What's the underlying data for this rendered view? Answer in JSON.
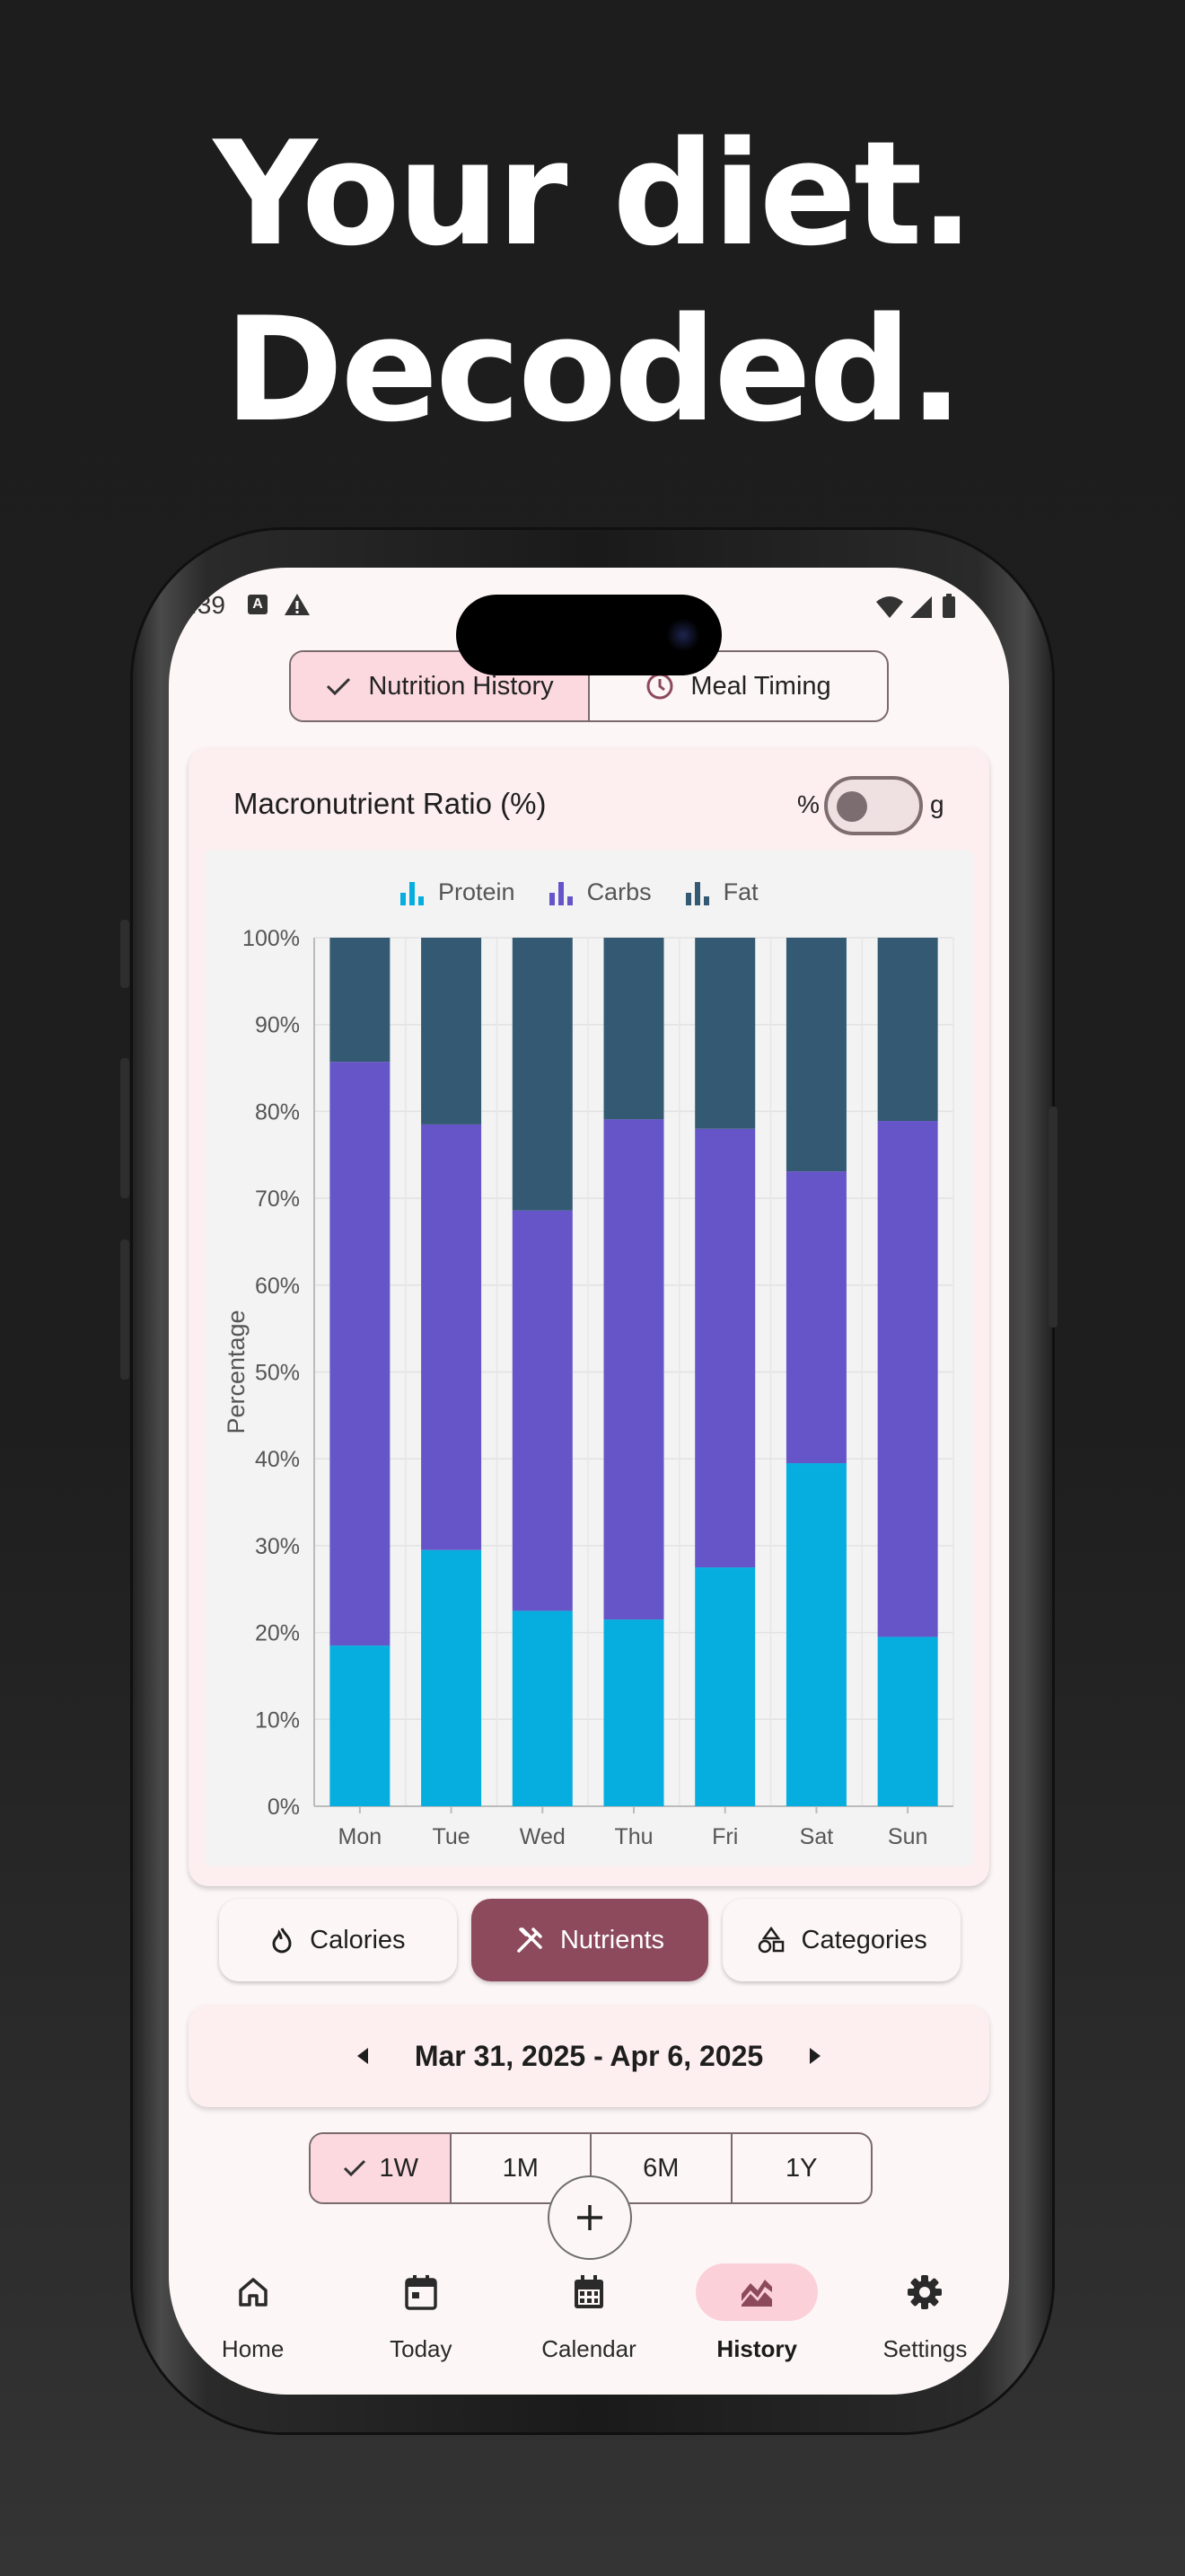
{
  "headline": {
    "line1": "Your diet.",
    "line2": "Decoded."
  },
  "status_bar": {
    "time": ":39",
    "a_badge": "A"
  },
  "top_tabs": [
    {
      "label": "Nutrition History",
      "icon": "check-icon",
      "selected": true
    },
    {
      "label": "Meal Timing",
      "icon": "clock-icon",
      "selected": false
    }
  ],
  "card": {
    "title": "Macronutrient Ratio (%)",
    "toggle_left": "%",
    "toggle_right": "g"
  },
  "colors": {
    "protein": "#06aedf",
    "carbs": "#6655c8",
    "fat": "#335a72",
    "accent": "#8c4a5c",
    "accent_light": "#fbd9df"
  },
  "chart_data": {
    "type": "bar",
    "stacked": true,
    "categories": [
      "Mon",
      "Tue",
      "Wed",
      "Thu",
      "Fri",
      "Sat",
      "Sun"
    ],
    "series": [
      {
        "name": "Protein",
        "values": [
          18.5,
          29.5,
          22.5,
          21.5,
          27.5,
          39.5,
          19.5
        ]
      },
      {
        "name": "Carbs",
        "values": [
          67.2,
          49.0,
          46.1,
          57.6,
          50.5,
          33.6,
          59.4
        ]
      },
      {
        "name": "Fat",
        "values": [
          14.3,
          21.5,
          31.4,
          20.9,
          22.0,
          26.9,
          21.1
        ]
      }
    ],
    "ylabel": "Percentage",
    "ylim": [
      0,
      100
    ],
    "yticks": [
      "0%",
      "10%",
      "20%",
      "30%",
      "40%",
      "50%",
      "60%",
      "70%",
      "80%",
      "90%",
      "100%"
    ],
    "grid": true,
    "legend": "top"
  },
  "chips": [
    {
      "label": "Calories",
      "icon": "flame-icon",
      "selected": false
    },
    {
      "label": "Nutrients",
      "icon": "fork-knife-icon",
      "selected": true
    },
    {
      "label": "Categories",
      "icon": "shapes-icon",
      "selected": false
    }
  ],
  "date_range": "Mar 31, 2025 - Apr 6, 2025",
  "range_options": [
    {
      "label": "1W",
      "selected": true
    },
    {
      "label": "1M",
      "selected": false
    },
    {
      "label": "6M",
      "selected": false
    },
    {
      "label": "1Y",
      "selected": false
    }
  ],
  "nav": [
    {
      "label": "Home",
      "icon": "home-icon",
      "selected": false
    },
    {
      "label": "Today",
      "icon": "calendar-day-icon",
      "selected": false
    },
    {
      "label": "Calendar",
      "icon": "calendar-month-icon",
      "selected": false
    },
    {
      "label": "History",
      "icon": "chart-icon",
      "selected": true
    },
    {
      "label": "Settings",
      "icon": "gear-icon",
      "selected": false
    }
  ]
}
